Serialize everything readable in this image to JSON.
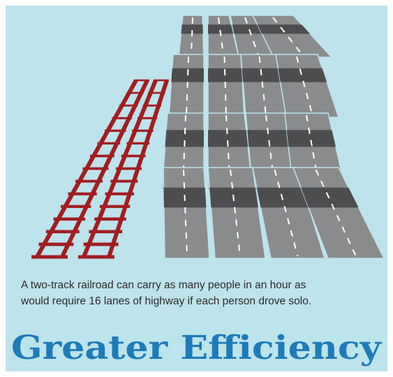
{
  "caption": {
    "lines": [
      "A two-track railroad can carry as many people in an hour as",
      "would require 16 lanes of highway if each person drove solo."
    ]
  },
  "title": "Greater Efficiency"
}
